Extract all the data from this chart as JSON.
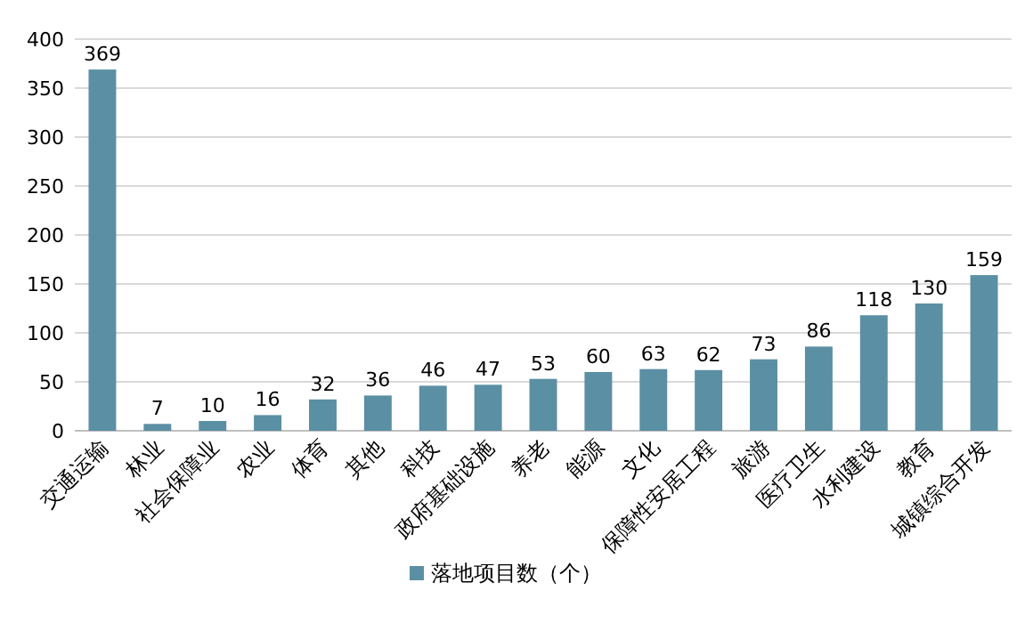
{
  "chart_data": {
    "type": "bar",
    "categories": [
      "交通运输",
      "林业",
      "社会保障业",
      "农业",
      "体育",
      "其他",
      "科技",
      "政府基础设施",
      "养老",
      "能源",
      "文化",
      "保障性安居工程",
      "旅游",
      "医疗卫生",
      "水利建设",
      "教育",
      "城镇综合开发"
    ],
    "series": [
      {
        "name": "落地项目数（个）",
        "color": "#5b8fa4",
        "values": [
          369,
          7,
          10,
          16,
          32,
          36,
          46,
          47,
          53,
          60,
          63,
          62,
          73,
          86,
          118,
          130,
          159
        ]
      }
    ],
    "ylim": [
      0,
      400
    ],
    "yticks": [
      0,
      50,
      100,
      150,
      200,
      250,
      300,
      350,
      400
    ],
    "grid": "y",
    "legend": "bottom",
    "data_labels": true
  }
}
